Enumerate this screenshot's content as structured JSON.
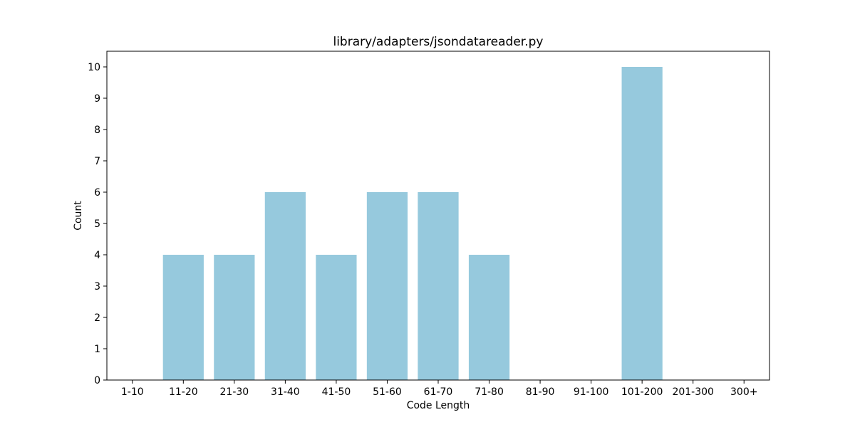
{
  "chart_data": {
    "type": "bar",
    "title": "library/adapters/jsondatareader.py",
    "xlabel": "Code Length",
    "ylabel": "Count",
    "categories": [
      "1-10",
      "11-20",
      "21-30",
      "31-40",
      "41-50",
      "51-60",
      "61-70",
      "71-80",
      "81-90",
      "91-100",
      "101-200",
      "201-300",
      "300+"
    ],
    "values": [
      0,
      4,
      4,
      6,
      4,
      6,
      6,
      4,
      0,
      0,
      10,
      0,
      0
    ],
    "ylim": [
      0,
      10.5
    ],
    "yticks": [
      "0",
      "1",
      "2",
      "3",
      "4",
      "5",
      "6",
      "7",
      "8",
      "9",
      "10"
    ],
    "bar_color": "#96c9dd",
    "grid": false,
    "legend": "none"
  }
}
